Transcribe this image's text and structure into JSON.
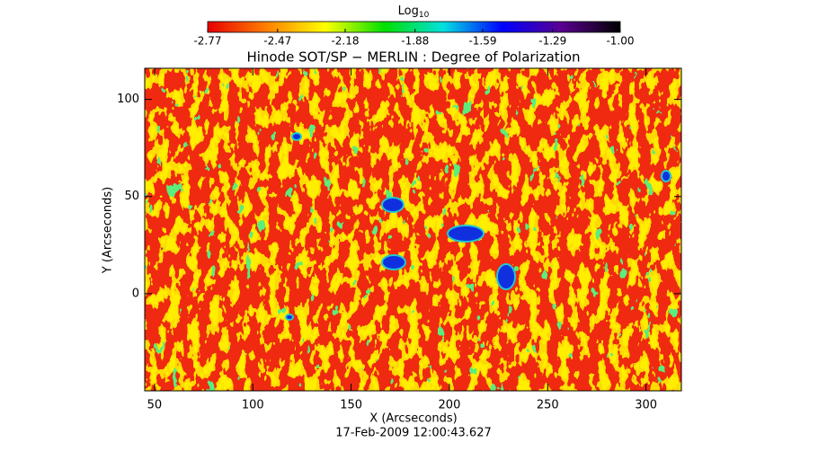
{
  "chart_data": {
    "type": "heatmap",
    "title": "Hinode SOT/SP − MERLIN : Degree of Polarization",
    "xlabel": "X (Arcseconds)",
    "ylabel": "Y (Arcseconds)",
    "footer": "17-Feb-2009 12:00:43.627",
    "xlim": [
      45,
      318
    ],
    "xticks": [
      50,
      100,
      150,
      200,
      250,
      300
    ],
    "ylim": [
      -50,
      116
    ],
    "yticks": [
      0,
      50,
      100
    ],
    "colorbar": {
      "title": "Log",
      "title_subscript": "10",
      "lim": [
        -2.77,
        -1.0
      ],
      "ticks": [
        -2.77,
        -2.47,
        -2.18,
        -1.88,
        -1.59,
        -1.29,
        {
          "value": -1.0,
          "label": "-1.00"
        }
      ],
      "colors": [
        "#e80000",
        "#ff8000",
        "#ffff00",
        "#00e000",
        "#00e0e0",
        "#0000ff",
        "#5a0090",
        "#000000"
      ]
    }
  }
}
